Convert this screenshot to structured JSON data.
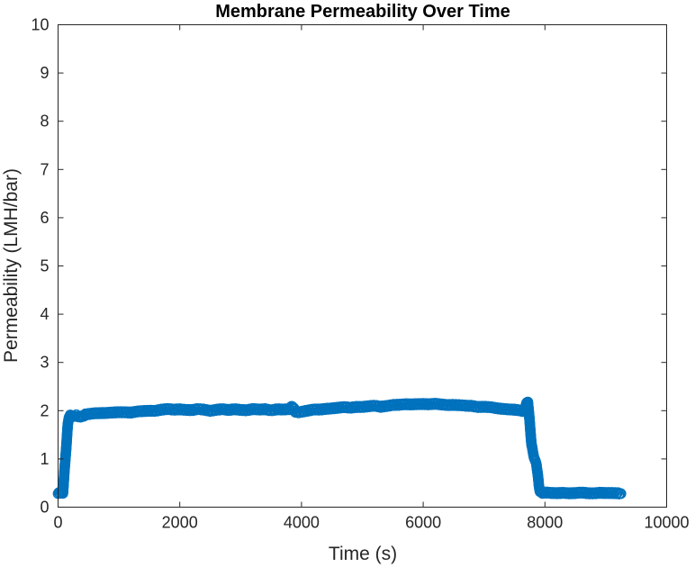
{
  "chart_data": {
    "type": "scatter",
    "title": "Membrane Permeability Over Time",
    "xlabel": "Time (s)",
    "ylabel": "Permeability (LMH/bar)",
    "xlim": [
      0,
      10000
    ],
    "ylim": [
      0,
      10
    ],
    "xticks": [
      0,
      2000,
      4000,
      6000,
      8000,
      10000
    ],
    "yticks": [
      0,
      1,
      2,
      3,
      4,
      5,
      6,
      7,
      8,
      9,
      10
    ],
    "grid": false,
    "box": true,
    "marker": "circle",
    "color": "#0072BD",
    "series": [
      {
        "x": [
          0,
          40,
          80,
          100,
          120,
          140,
          160,
          180,
          200,
          250,
          300,
          350,
          400,
          450,
          500,
          600,
          700,
          800,
          900,
          1000,
          1100,
          1200,
          1300,
          1400,
          1500,
          1600,
          1700,
          1800,
          1900,
          2000,
          2100,
          2200,
          2300,
          2400,
          2500,
          2600,
          2700,
          2800,
          2900,
          3000,
          3100,
          3200,
          3300,
          3400,
          3500,
          3600,
          3700,
          3800,
          3850,
          3900,
          3950,
          4000,
          4100,
          4200,
          4300,
          4400,
          4500,
          4600,
          4700,
          4800,
          4900,
          5000,
          5100,
          5200,
          5300,
          5400,
          5500,
          5600,
          5700,
          5800,
          5900,
          6000,
          6100,
          6200,
          6300,
          6400,
          6500,
          6600,
          6700,
          6800,
          6900,
          7000,
          7100,
          7200,
          7300,
          7400,
          7500,
          7600,
          7650,
          7700,
          7720,
          7740,
          7760,
          7780,
          7800,
          7820,
          7840,
          7860,
          7880,
          7900,
          7920,
          7940,
          7960,
          7980,
          8000,
          8050,
          8100,
          8200,
          8300,
          8400,
          8500,
          8600,
          8700,
          8800,
          8900,
          9000,
          9100,
          9200,
          9250
        ],
        "y": [
          0.28,
          0.3,
          0.3,
          0.65,
          1.0,
          1.35,
          1.7,
          1.88,
          1.9,
          1.88,
          1.9,
          1.87,
          1.88,
          1.92,
          1.93,
          1.95,
          1.95,
          1.95,
          1.96,
          1.97,
          1.97,
          1.96,
          1.98,
          1.99,
          2.0,
          2.0,
          2.02,
          2.03,
          2.02,
          2.03,
          2.02,
          2.01,
          2.03,
          2.02,
          2.0,
          2.02,
          2.03,
          2.01,
          2.03,
          2.02,
          2.01,
          2.03,
          2.02,
          2.03,
          2.01,
          2.03,
          2.02,
          2.03,
          2.1,
          1.98,
          1.97,
          1.98,
          2.0,
          2.02,
          2.02,
          2.04,
          2.05,
          2.06,
          2.07,
          2.06,
          2.08,
          2.08,
          2.09,
          2.1,
          2.08,
          2.1,
          2.12,
          2.12,
          2.13,
          2.13,
          2.14,
          2.14,
          2.13,
          2.14,
          2.13,
          2.12,
          2.12,
          2.11,
          2.1,
          2.1,
          2.08,
          2.08,
          2.07,
          2.05,
          2.04,
          2.03,
          2.02,
          2.0,
          1.98,
          2.15,
          2.2,
          1.9,
          1.6,
          1.3,
          1.15,
          1.05,
          0.95,
          0.9,
          0.7,
          0.45,
          0.33,
          0.3,
          0.3,
          0.3,
          0.3,
          0.3,
          0.29,
          0.29,
          0.3,
          0.29,
          0.29,
          0.3,
          0.29,
          0.29,
          0.3,
          0.29,
          0.29,
          0.29,
          0.28
        ]
      }
    ]
  }
}
